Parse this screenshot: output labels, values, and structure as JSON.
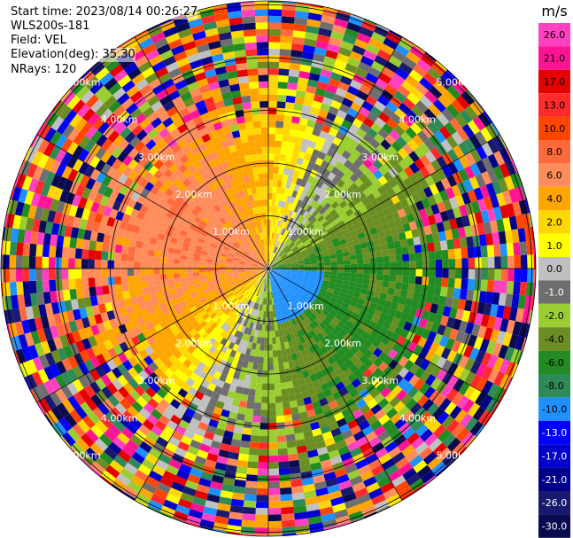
{
  "header": {
    "start_time": "Start time: 2023/08/14 00:26:27",
    "instrument": "WLS200s-181",
    "field": "Field: VEL",
    "elevation": "Elevation(deg): 35.30",
    "nrays": "NRays: 120"
  },
  "chart_data": {
    "type": "heatmap",
    "projection": "polar-ppi",
    "field": "VEL",
    "nrays": 120,
    "elevation_deg": 35.3,
    "range_rings_km": [
      1,
      2,
      3,
      4,
      5
    ],
    "ring_labels": [
      "1.00km",
      "2.00km",
      "3.00km",
      "4.00km",
      "5.00km"
    ],
    "colorbar": {
      "unit": "m/s",
      "ticks": [
        "26.0",
        "21.0",
        "17.0",
        "13.0",
        "10.0",
        "8.0",
        "6.0",
        "4.0",
        "2.0",
        "1.0",
        "0.0",
        "-1.0",
        "-2.0",
        "-4.0",
        "-6.0",
        "-8.0",
        "-10.0",
        "-13.0",
        "-17.0",
        "-21.0",
        "-26.0",
        "-30.0"
      ],
      "colors": [
        "#ff40c0",
        "#ff1493",
        "#e60000",
        "#ff2a2a",
        "#ff4500",
        "#ff6a3d",
        "#ff8c5a",
        "#ffa500",
        "#ffd700",
        "#ffff00",
        "#c0c0c0",
        "#6e6e6e",
        "#9acd32",
        "#6b8e23",
        "#228b22",
        "#2e8b57",
        "#1e90ff",
        "#0000ff",
        "#0000cd",
        "#00008b",
        "#191970",
        "#0a0a50"
      ]
    }
  }
}
